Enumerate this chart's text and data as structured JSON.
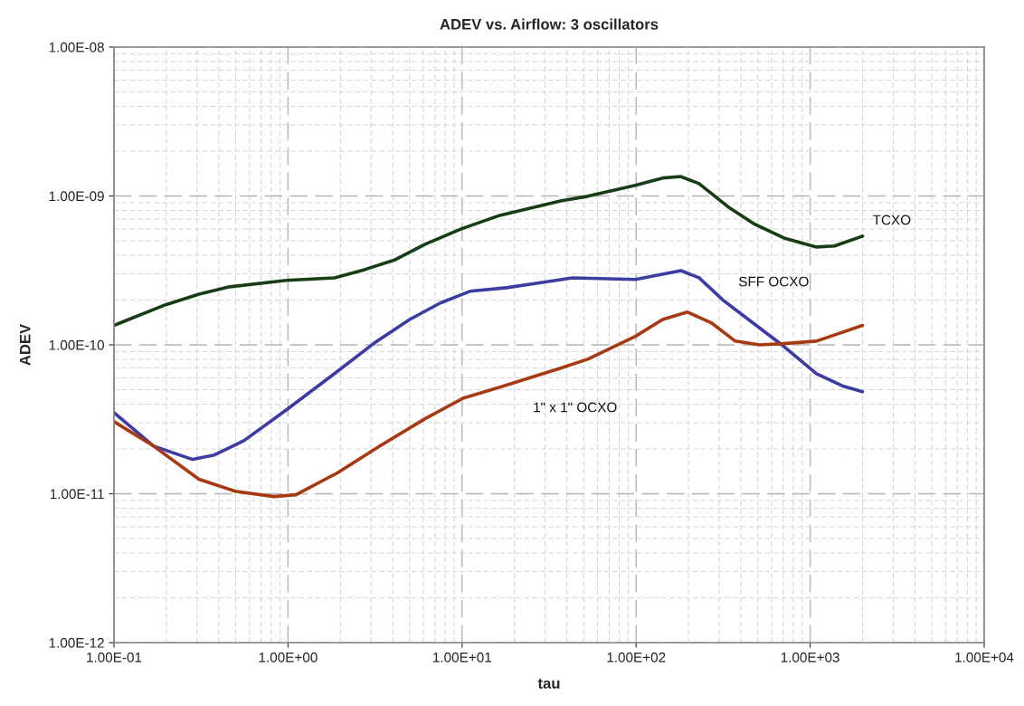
{
  "chart_data": {
    "type": "line",
    "title": "ADEV vs. Airflow: 3 oscillators",
    "xlabel": "tau",
    "ylabel": "ADEV",
    "log": "xy",
    "grid": true,
    "legend": false,
    "marker": "none",
    "line_style": "solid",
    "xlim": [
      0.1,
      10000
    ],
    "ylim": [
      1e-12,
      1e-08
    ],
    "xticks": [
      {
        "value": 0.1,
        "label": "1.00E-01"
      },
      {
        "value": 1,
        "label": "1.00E+00"
      },
      {
        "value": 10,
        "label": "1.00E+01"
      },
      {
        "value": 100,
        "label": "1.00E+02"
      },
      {
        "value": 1000,
        "label": "1.00E+03"
      },
      {
        "value": 10000,
        "label": "1.00E+04"
      }
    ],
    "yticks": [
      {
        "value": 1e-12,
        "label": "1.00E-12"
      },
      {
        "value": 1e-11,
        "label": "1.00E-11"
      },
      {
        "value": 1e-10,
        "label": "1.00E-10"
      },
      {
        "value": 1e-09,
        "label": "1.00E-09"
      },
      {
        "value": 1e-08,
        "label": "1.00E-08"
      }
    ],
    "series": [
      {
        "name": "TCXO",
        "color": "#163d16",
        "x": [
          0.1,
          0.198,
          0.308,
          0.457,
          0.98,
          1.85,
          2.75,
          4.13,
          6.13,
          9.9,
          16.5,
          36.8,
          52.7,
          99,
          142,
          181,
          230,
          345,
          471,
          707,
          1087,
          1380,
          2000
        ],
        "values": [
          1.35e-10,
          1.86e-10,
          2.19e-10,
          2.45e-10,
          2.71e-10,
          2.82e-10,
          3.2e-10,
          3.73e-10,
          4.74e-10,
          6.01e-10,
          7.41e-10,
          9.27e-10,
          9.95e-10,
          1.18e-09,
          1.32e-09,
          1.35e-09,
          1.21e-09,
          8.3e-10,
          6.54e-10,
          5.22e-10,
          4.54e-10,
          4.61e-10,
          5.37e-10
        ]
      },
      {
        "name": "SFF OCXO",
        "color": "#3d3ca3",
        "x": [
          0.1,
          0.169,
          0.283,
          0.377,
          0.56,
          0.98,
          1.85,
          3.1,
          5.0,
          7.5,
          11.1,
          18.0,
          29.0,
          43.0,
          99,
          181,
          230,
          317,
          471,
          707,
          1087,
          1556,
          2000
        ],
        "values": [
          3.51e-11,
          2.09e-11,
          1.7e-11,
          1.82e-11,
          2.28e-11,
          3.66e-11,
          6.41e-11,
          1.02e-10,
          1.48e-10,
          1.91e-10,
          2.29e-10,
          2.42e-10,
          2.63e-10,
          2.82e-10,
          2.75e-10,
          3.15e-10,
          2.82e-10,
          1.99e-10,
          1.4e-10,
          9.75e-11,
          6.41e-11,
          5.27e-11,
          4.85e-11
        ]
      },
      {
        "name": "1\" x 1\" OCXO",
        "color": "#a63a12",
        "x": [
          0.1,
          0.169,
          0.308,
          0.497,
          0.83,
          1.11,
          1.92,
          3.37,
          6.13,
          10.2,
          16.5,
          36.8,
          52.7,
          99,
          142,
          197,
          272,
          371,
          512,
          707,
          1087,
          2000
        ],
        "values": [
          3.05e-11,
          2.09e-11,
          1.25e-11,
          1.04e-11,
          9.57e-12,
          9.84e-12,
          1.38e-11,
          2.09e-11,
          3.19e-11,
          4.4e-11,
          5.2e-11,
          6.97e-11,
          8.01e-11,
          1.14e-10,
          1.48e-10,
          1.66e-10,
          1.4e-10,
          1.06e-10,
          1e-10,
          1.02e-10,
          1.06e-10,
          1.35e-10
        ]
      }
    ]
  }
}
